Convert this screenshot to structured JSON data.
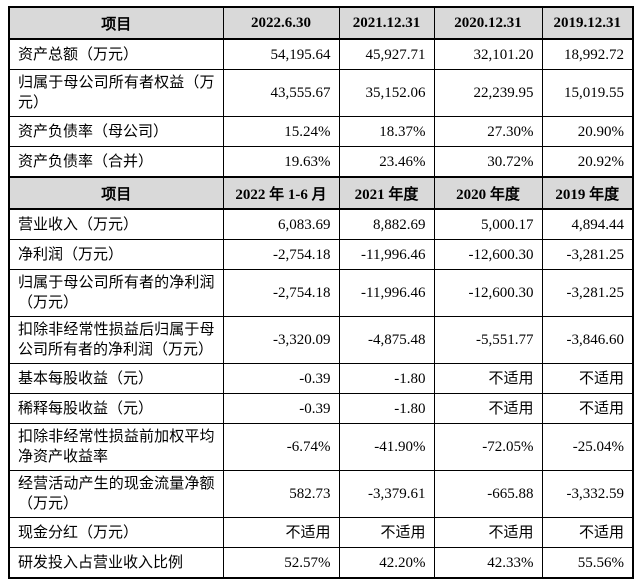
{
  "colors": {
    "header_bg": "#d9d9d9",
    "border": "#000000",
    "text": "#000000",
    "page_bg": "#ffffff"
  },
  "table": {
    "sections": [
      {
        "header": {
          "item_label": "项目",
          "columns": [
            "2022.6.30",
            "2021.12.31",
            "2020.12.31",
            "2019.12.31"
          ]
        },
        "rows": [
          {
            "label": "资产总额（万元）",
            "values": [
              "54,195.64",
              "45,927.71",
              "32,101.20",
              "18,992.72"
            ]
          },
          {
            "label": "归属于母公司所有者权益（万元）",
            "values": [
              "43,555.67",
              "35,152.06",
              "22,239.95",
              "15,019.55"
            ]
          },
          {
            "label": "资产负债率（母公司）",
            "values": [
              "15.24%",
              "18.37%",
              "27.30%",
              "20.90%"
            ]
          },
          {
            "label": "资产负债率（合并）",
            "values": [
              "19.63%",
              "23.46%",
              "30.72%",
              "20.92%"
            ]
          }
        ]
      },
      {
        "header": {
          "item_label": "项目",
          "columns": [
            "2022 年 1-6 月",
            "2021 年度",
            "2020 年度",
            "2019 年度"
          ]
        },
        "rows": [
          {
            "label": "营业收入（万元）",
            "values": [
              "6,083.69",
              "8,882.69",
              "5,000.17",
              "4,894.44"
            ]
          },
          {
            "label": "净利润（万元）",
            "values": [
              "-2,754.18",
              "-11,996.46",
              "-12,600.30",
              "-3,281.25"
            ]
          },
          {
            "label": "归属于母公司所有者的净利润（万元）",
            "values": [
              "-2,754.18",
              "-11,996.46",
              "-12,600.30",
              "-3,281.25"
            ]
          },
          {
            "label": "扣除非经常性损益后归属于母公司所有者的净利润（万元）",
            "values": [
              "-3,320.09",
              "-4,875.48",
              "-5,551.77",
              "-3,846.60"
            ]
          },
          {
            "label": "基本每股收益（元）",
            "values": [
              "-0.39",
              "-1.80",
              "不适用",
              "不适用"
            ]
          },
          {
            "label": "稀释每股收益（元）",
            "values": [
              "-0.39",
              "-1.80",
              "不适用",
              "不适用"
            ]
          },
          {
            "label": "扣除非经常性损益前加权平均净资产收益率",
            "values": [
              "-6.74%",
              "-41.90%",
              "-72.05%",
              "-25.04%"
            ]
          },
          {
            "label": "经营活动产生的现金流量净额（万元）",
            "values": [
              "582.73",
              "-3,379.61",
              "-665.88",
              "-3,332.59"
            ]
          },
          {
            "label": "现金分红（万元）",
            "values": [
              "不适用",
              "不适用",
              "不适用",
              "不适用"
            ]
          },
          {
            "label": "研发投入占营业收入比例",
            "values": [
              "52.57%",
              "42.20%",
              "42.33%",
              "55.56%"
            ]
          }
        ]
      }
    ]
  }
}
